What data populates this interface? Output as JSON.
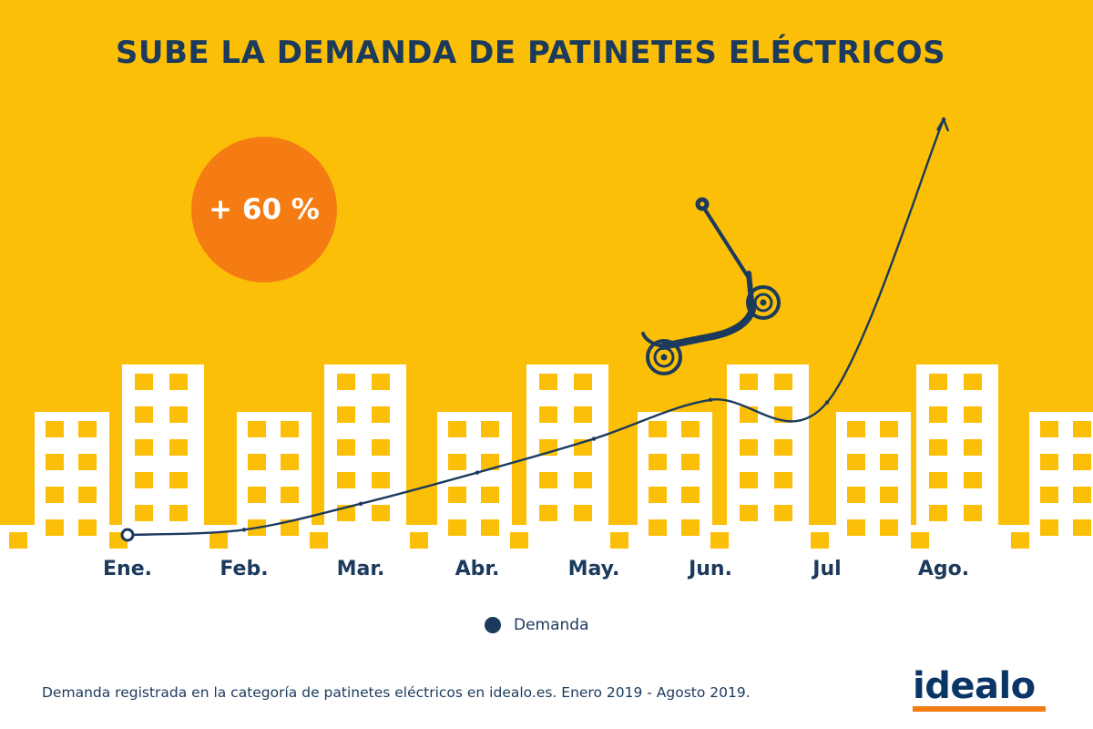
{
  "title": "SUBE LA DEMANDA DE PATINETES ELÉCTRICOS",
  "badge": {
    "text": "+ 60 %"
  },
  "colors": {
    "background": "#fcbf08",
    "buildings": "#ffffff",
    "windows": "#fcbf08",
    "line": "#1b3a5c",
    "badge": "#f47c12",
    "text": "#1b3a5c"
  },
  "chart_data": {
    "type": "line",
    "title": "SUBE LA DEMANDA DE PATINETES ELÉCTRICOS",
    "xlabel": "",
    "ylabel": "",
    "categories": [
      "Ene.",
      "Feb.",
      "Mar.",
      "Abr.",
      "May.",
      "Jun.",
      "Jul",
      "Ago."
    ],
    "series": [
      {
        "name": "Demanda",
        "values": [
          0,
          2,
          12,
          24,
          37,
          52,
          51,
          160
        ]
      }
    ],
    "y_axis_shown": false,
    "grid": false,
    "legend": "bottom-center",
    "annotation": "+ 60 %"
  },
  "legend": {
    "label": "Demanda"
  },
  "source": "Demanda registrada en la categoría de patinetes eléctricos en idealo.es. Enero 2019 - Agosto 2019.",
  "logo": {
    "text": "idealo"
  },
  "icons": {
    "illustration": "scooter-icon"
  }
}
